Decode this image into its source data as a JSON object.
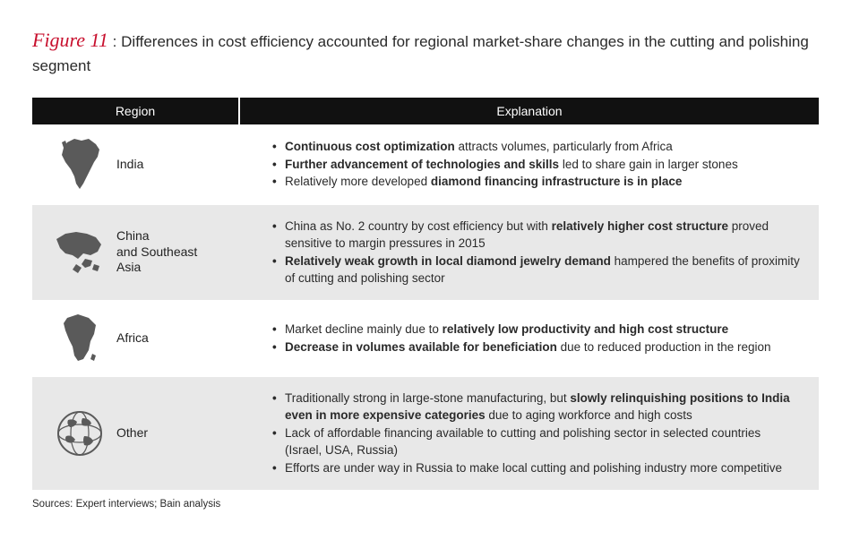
{
  "figure": {
    "label": "Figure 11",
    "sep": ":",
    "title": "Differences in cost efficiency accounted for regional market-share changes in the cutting and polishing segment"
  },
  "headers": {
    "region": "Region",
    "explanation": "Explanation"
  },
  "rows": [
    {
      "region": "India",
      "icon": "india",
      "bullets": [
        [
          {
            "b": true,
            "t": "Continuous cost optimization"
          },
          {
            "b": false,
            "t": " attracts volumes, particularly from Africa"
          }
        ],
        [
          {
            "b": true,
            "t": "Further advancement of technologies and skills"
          },
          {
            "b": false,
            "t": " led to share gain in larger stones"
          }
        ],
        [
          {
            "b": false,
            "t": "Relatively more developed "
          },
          {
            "b": true,
            "t": "diamond financing infrastructure is in place"
          }
        ]
      ]
    },
    {
      "region": "China\nand Southeast\nAsia",
      "icon": "china-sea",
      "bullets": [
        [
          {
            "b": false,
            "t": "China as No. 2 country by cost efficiency but with "
          },
          {
            "b": true,
            "t": "relatively higher cost structure"
          },
          {
            "b": false,
            "t": " proved sensitive to margin pressures in 2015"
          }
        ],
        [
          {
            "b": true,
            "t": "Relatively weak growth in local diamond jewelry demand"
          },
          {
            "b": false,
            "t": " hampered the benefits of proximity of cutting and polishing sector"
          }
        ]
      ]
    },
    {
      "region": "Africa",
      "icon": "africa",
      "bullets": [
        [
          {
            "b": false,
            "t": "Market decline mainly due to "
          },
          {
            "b": true,
            "t": "relatively low productivity and high cost structure"
          }
        ],
        [
          {
            "b": true,
            "t": "Decrease in volumes available for beneficiation"
          },
          {
            "b": false,
            "t": " due to reduced production in the region"
          }
        ]
      ]
    },
    {
      "region": "Other",
      "icon": "globe",
      "bullets": [
        [
          {
            "b": false,
            "t": "Traditionally strong in large-stone manufacturing, but "
          },
          {
            "b": true,
            "t": "slowly relinquishing positions to India even in more expensive categories"
          },
          {
            "b": false,
            "t": " due to aging workforce and high costs"
          }
        ],
        [
          {
            "b": false,
            "t": "Lack of affordable financing available to cutting and polishing sector in selected countries (Israel, USA, Russia)"
          }
        ],
        [
          {
            "b": false,
            "t": "Efforts are under way in Russia to make local cutting and polishing industry more competitive"
          }
        ]
      ]
    }
  ],
  "sources": "Sources: Expert interviews; Bain analysis",
  "style": {
    "header_bg": "#111111",
    "header_fg": "#ffffff",
    "row_even_bg": "#ffffff",
    "row_odd_bg": "#e8e8e8",
    "accent": "#c8102e",
    "text": "#2a2a2a",
    "icon_fill": "#5a5a5a"
  }
}
